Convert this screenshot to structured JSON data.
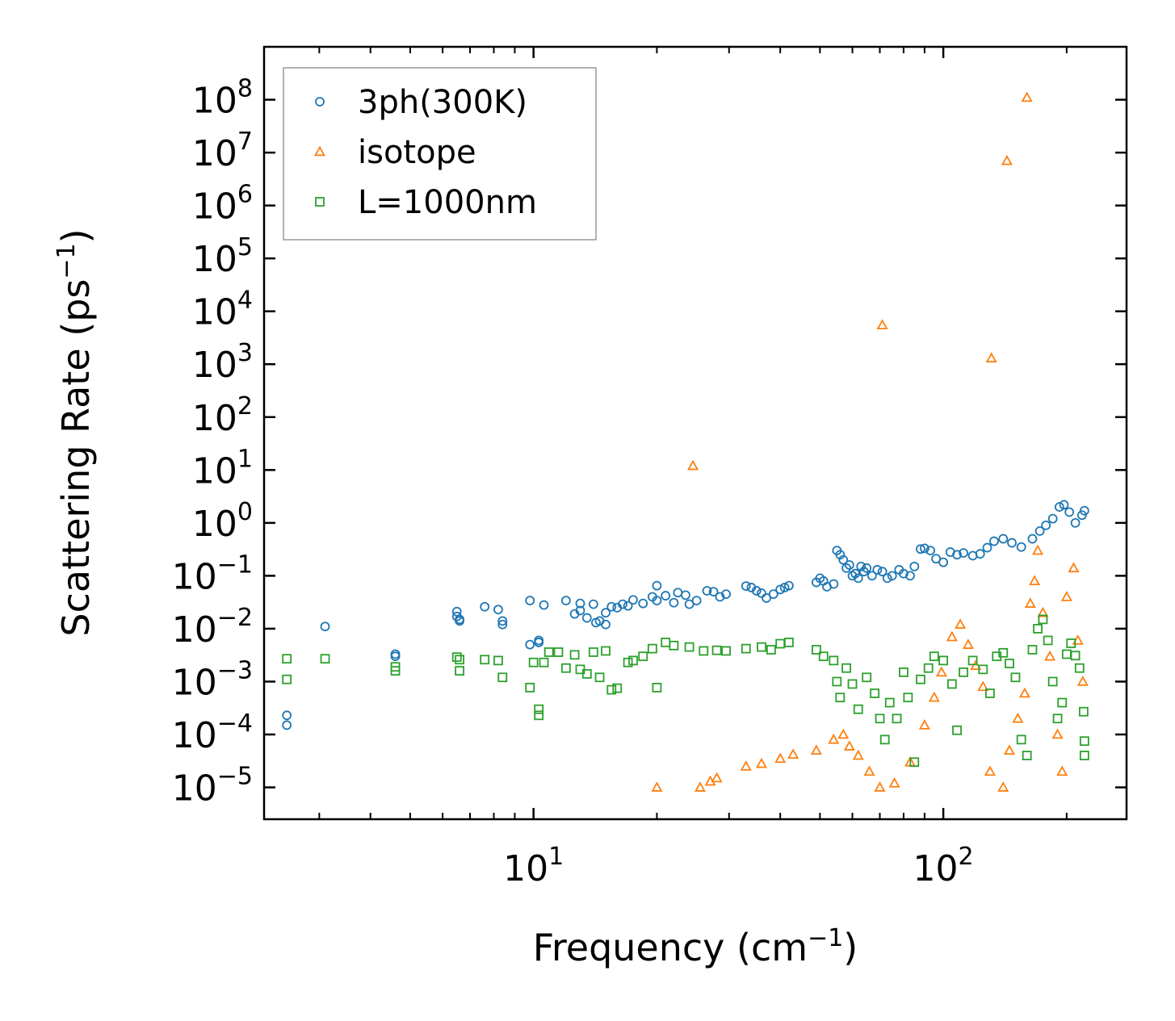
{
  "chart_data": {
    "type": "scatter",
    "xscale": "log",
    "yscale": "log",
    "xlim": [
      2.2,
      280
    ],
    "ylim": [
      2.5e-06,
      1000000000
    ],
    "xlabel": "Frequency (cm",
    "xlabel_sup": "−1",
    "xlabel_end": ")",
    "ylabel": "Scattering Rate (ps",
    "ylabel_sup": "−1",
    "ylabel_end": ")",
    "xticks": [
      {
        "value": 10,
        "base": "10",
        "exp": "1"
      },
      {
        "value": 100,
        "base": "10",
        "exp": "2"
      }
    ],
    "yticks": [
      {
        "value": 100000000,
        "base": "10",
        "exp": "8"
      },
      {
        "value": 10000000,
        "base": "10",
        "exp": "7"
      },
      {
        "value": 1000000,
        "base": "10",
        "exp": "6"
      },
      {
        "value": 100000,
        "base": "10",
        "exp": "5"
      },
      {
        "value": 10000,
        "base": "10",
        "exp": "4"
      },
      {
        "value": 1000,
        "base": "10",
        "exp": "3"
      },
      {
        "value": 100,
        "base": "10",
        "exp": "2"
      },
      {
        "value": 10,
        "base": "10",
        "exp": "1"
      },
      {
        "value": 1,
        "base": "10",
        "exp": "0"
      },
      {
        "value": 0.1,
        "base": "10",
        "exp": "−1"
      },
      {
        "value": 0.01,
        "base": "10",
        "exp": "−2"
      },
      {
        "value": 0.001,
        "base": "10",
        "exp": "−3"
      },
      {
        "value": 0.0001,
        "base": "10",
        "exp": "−4"
      },
      {
        "value": 1e-05,
        "base": "10",
        "exp": "−5"
      }
    ],
    "legend_position": "top-left",
    "series": [
      {
        "name": "3ph(300K)",
        "marker": "circle",
        "color": "#1f77b4",
        "points": [
          [
            2.5,
            0.00023
          ],
          [
            2.5,
            0.00015
          ],
          [
            3.1,
            0.011
          ],
          [
            4.6,
            0.0033
          ],
          [
            4.6,
            0.003
          ],
          [
            6.5,
            0.021
          ],
          [
            6.5,
            0.017
          ],
          [
            6.6,
            0.015
          ],
          [
            6.6,
            0.014
          ],
          [
            7.6,
            0.026
          ],
          [
            8.2,
            0.023
          ],
          [
            8.4,
            0.014
          ],
          [
            8.4,
            0.012
          ],
          [
            9.8,
            0.034
          ],
          [
            9.8,
            0.005
          ],
          [
            10.3,
            0.006
          ],
          [
            10.3,
            0.0055
          ],
          [
            10.6,
            0.028
          ],
          [
            12.0,
            0.034
          ],
          [
            12.6,
            0.019
          ],
          [
            13.0,
            0.03
          ],
          [
            13.0,
            0.022
          ],
          [
            13.5,
            0.016
          ],
          [
            14.0,
            0.029
          ],
          [
            14.2,
            0.013
          ],
          [
            14.5,
            0.014
          ],
          [
            15.0,
            0.02
          ],
          [
            15.0,
            0.012
          ],
          [
            15.5,
            0.026
          ],
          [
            16.0,
            0.025
          ],
          [
            16.5,
            0.029
          ],
          [
            17.5,
            0.035
          ],
          [
            17.0,
            0.027
          ],
          [
            18.5,
            0.03
          ],
          [
            20.0,
            0.065
          ],
          [
            20.0,
            0.034
          ],
          [
            19.5,
            0.04
          ],
          [
            21.0,
            0.042
          ],
          [
            22.0,
            0.031
          ],
          [
            22.5,
            0.048
          ],
          [
            23.5,
            0.043
          ],
          [
            24.0,
            0.029
          ],
          [
            25.0,
            0.034
          ],
          [
            26.5,
            0.052
          ],
          [
            27.5,
            0.05
          ],
          [
            28.5,
            0.04
          ],
          [
            29.5,
            0.045
          ],
          [
            33.0,
            0.064
          ],
          [
            34.0,
            0.06
          ],
          [
            35.0,
            0.052
          ],
          [
            36.0,
            0.047
          ],
          [
            37.0,
            0.038
          ],
          [
            38.5,
            0.045
          ],
          [
            40.0,
            0.055
          ],
          [
            41.0,
            0.06
          ],
          [
            42.0,
            0.065
          ],
          [
            49.0,
            0.075
          ],
          [
            50.0,
            0.09
          ],
          [
            51.0,
            0.08
          ],
          [
            52.0,
            0.062
          ],
          [
            54.0,
            0.07
          ],
          [
            55.0,
            0.3
          ],
          [
            56.0,
            0.25
          ],
          [
            57.0,
            0.2
          ],
          [
            58.0,
            0.14
          ],
          [
            59.0,
            0.16
          ],
          [
            60.0,
            0.1
          ],
          [
            61.0,
            0.11
          ],
          [
            62.0,
            0.09
          ],
          [
            63.0,
            0.15
          ],
          [
            64.0,
            0.12
          ],
          [
            65.0,
            0.14
          ],
          [
            67.0,
            0.1
          ],
          [
            69.0,
            0.13
          ],
          [
            71.0,
            0.12
          ],
          [
            73.0,
            0.09
          ],
          [
            75.0,
            0.1
          ],
          [
            78.0,
            0.13
          ],
          [
            80.0,
            0.11
          ],
          [
            83.0,
            0.1
          ],
          [
            85.0,
            0.15
          ],
          [
            88.0,
            0.32
          ],
          [
            90.0,
            0.33
          ],
          [
            93.0,
            0.3
          ],
          [
            96.0,
            0.21
          ],
          [
            100.0,
            0.18
          ],
          [
            104.0,
            0.28
          ],
          [
            108.0,
            0.25
          ],
          [
            112.0,
            0.27
          ],
          [
            118.0,
            0.24
          ],
          [
            123.0,
            0.26
          ],
          [
            128.0,
            0.34
          ],
          [
            133.0,
            0.45
          ],
          [
            140.0,
            0.5
          ],
          [
            147.0,
            0.42
          ],
          [
            155.0,
            0.35
          ],
          [
            165.0,
            0.5
          ],
          [
            172.0,
            0.7
          ],
          [
            178.0,
            0.9
          ],
          [
            185.0,
            1.2
          ],
          [
            192.0,
            2.0
          ],
          [
            197.0,
            2.2
          ],
          [
            203.0,
            1.6
          ],
          [
            210.0,
            1.0
          ],
          [
            218.0,
            1.4
          ],
          [
            221.0,
            1.7
          ]
        ]
      },
      {
        "name": "isotope",
        "marker": "triangle",
        "color": "#ff7f0e",
        "points": [
          [
            24.5,
            12.0
          ],
          [
            71.0,
            5500.0
          ],
          [
            131.0,
            1300.0
          ],
          [
            143.0,
            7000000.0
          ],
          [
            160.0,
            110000000.0
          ],
          [
            20.0,
            1e-05
          ],
          [
            25.5,
            1e-05
          ],
          [
            27.0,
            1.3e-05
          ],
          [
            28.0,
            1.5e-05
          ],
          [
            33.0,
            2.5e-05
          ],
          [
            36.0,
            2.8e-05
          ],
          [
            40.0,
            3.5e-05
          ],
          [
            43.0,
            4.2e-05
          ],
          [
            49.0,
            5e-05
          ],
          [
            54.0,
            8e-05
          ],
          [
            57.0,
            0.0001
          ],
          [
            59.0,
            6e-05
          ],
          [
            62.0,
            4e-05
          ],
          [
            66.0,
            2e-05
          ],
          [
            70.0,
            1e-05
          ],
          [
            76.0,
            1.2e-05
          ],
          [
            83.0,
            3e-05
          ],
          [
            90.0,
            0.00015
          ],
          [
            95.0,
            0.0005
          ],
          [
            99.0,
            0.0015
          ],
          [
            105.0,
            0.007
          ],
          [
            110.0,
            0.012
          ],
          [
            115.0,
            0.005
          ],
          [
            120.0,
            0.002
          ],
          [
            125.0,
            0.0008
          ],
          [
            130.0,
            2e-05
          ],
          [
            140.0,
            1e-05
          ],
          [
            145.0,
            5e-05
          ],
          [
            152.0,
            0.0002
          ],
          [
            158.0,
            0.0006
          ],
          [
            163.0,
            0.03
          ],
          [
            167.0,
            0.08
          ],
          [
            170.0,
            0.3
          ],
          [
            175.0,
            0.02
          ],
          [
            182.0,
            0.003
          ],
          [
            190.0,
            0.0001
          ],
          [
            195.0,
            2e-05
          ],
          [
            200.0,
            0.04
          ],
          [
            208.0,
            0.14
          ],
          [
            213.0,
            0.006
          ],
          [
            219.0,
            0.001
          ]
        ]
      },
      {
        "name": "L=1000nm",
        "marker": "square",
        "color": "#2ca02c",
        "points": [
          [
            2.5,
            0.0027
          ],
          [
            2.5,
            0.0011
          ],
          [
            3.1,
            0.0027
          ],
          [
            4.6,
            0.0019
          ],
          [
            4.6,
            0.0016
          ],
          [
            6.5,
            0.0029
          ],
          [
            6.6,
            0.0026
          ],
          [
            6.6,
            0.0016
          ],
          [
            7.6,
            0.0026
          ],
          [
            8.2,
            0.0025
          ],
          [
            8.4,
            0.0012
          ],
          [
            9.8,
            0.00077
          ],
          [
            10.0,
            0.0023
          ],
          [
            10.3,
            0.0003
          ],
          [
            10.3,
            0.00023
          ],
          [
            10.6,
            0.0023
          ],
          [
            10.9,
            0.0036
          ],
          [
            11.5,
            0.0036
          ],
          [
            12.0,
            0.0018
          ],
          [
            12.6,
            0.0032
          ],
          [
            13.0,
            0.0017
          ],
          [
            13.5,
            0.0014
          ],
          [
            14.0,
            0.0036
          ],
          [
            14.5,
            0.0012
          ],
          [
            15.0,
            0.0038
          ],
          [
            15.5,
            0.0007
          ],
          [
            16.0,
            0.00075
          ],
          [
            17.0,
            0.0023
          ],
          [
            17.5,
            0.0025
          ],
          [
            18.5,
            0.003
          ],
          [
            20.0,
            0.00077
          ],
          [
            19.5,
            0.0042
          ],
          [
            21.0,
            0.0055
          ],
          [
            22.0,
            0.0048
          ],
          [
            24.0,
            0.0045
          ],
          [
            26.0,
            0.0038
          ],
          [
            28.0,
            0.0039
          ],
          [
            29.5,
            0.0038
          ],
          [
            33.0,
            0.0042
          ],
          [
            36.0,
            0.0045
          ],
          [
            38.0,
            0.004
          ],
          [
            40.0,
            0.0052
          ],
          [
            42.0,
            0.0055
          ],
          [
            49.0,
            0.004
          ],
          [
            51.0,
            0.003
          ],
          [
            54.0,
            0.0025
          ],
          [
            55.0,
            0.001
          ],
          [
            56.0,
            0.0005
          ],
          [
            58.0,
            0.0018
          ],
          [
            60.0,
            0.0009
          ],
          [
            62.0,
            0.0003
          ],
          [
            65.0,
            0.0012
          ],
          [
            68.0,
            0.0006
          ],
          [
            70.0,
            0.0002
          ],
          [
            72.0,
            8e-05
          ],
          [
            74.0,
            0.0004
          ],
          [
            77.0,
            0.0002
          ],
          [
            80.0,
            0.0015
          ],
          [
            82.0,
            0.0005
          ],
          [
            85.0,
            3e-05
          ],
          [
            88.0,
            0.0011
          ],
          [
            92.0,
            0.0018
          ],
          [
            95.0,
            0.003
          ],
          [
            100.0,
            0.0025
          ],
          [
            105.0,
            0.0009
          ],
          [
            108.0,
            0.00012
          ],
          [
            112.0,
            0.0015
          ],
          [
            118.0,
            0.0025
          ],
          [
            125.0,
            0.0017
          ],
          [
            130.0,
            0.0006
          ],
          [
            135.0,
            0.003
          ],
          [
            140.0,
            0.0035
          ],
          [
            145.0,
            0.0022
          ],
          [
            150.0,
            0.0012
          ],
          [
            155.0,
            8e-05
          ],
          [
            160.0,
            4e-05
          ],
          [
            165.0,
            0.004
          ],
          [
            170.0,
            0.01
          ],
          [
            175.0,
            0.015
          ],
          [
            180.0,
            0.006
          ],
          [
            185.0,
            0.001
          ],
          [
            190.0,
            0.0002
          ],
          [
            195.0,
            0.0004
          ],
          [
            200.0,
            0.0033
          ],
          [
            205.0,
            0.0053
          ],
          [
            210.0,
            0.0031
          ],
          [
            215.0,
            0.0018
          ],
          [
            220.0,
            0.00027
          ],
          [
            221.0,
            4e-05
          ],
          [
            221.0,
            7.5e-05
          ]
        ]
      }
    ]
  }
}
